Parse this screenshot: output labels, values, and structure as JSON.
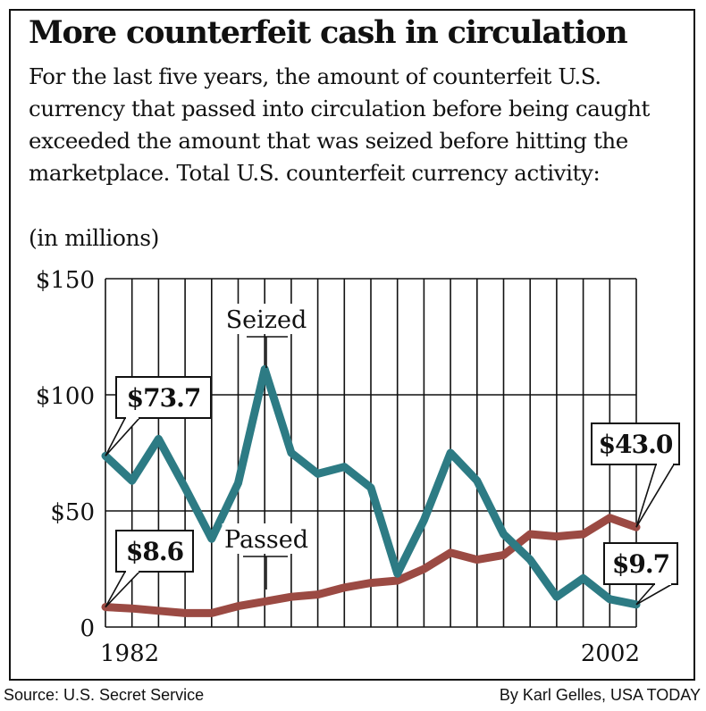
{
  "title": "More counterfeit cash in circulation",
  "subtitle": "For the last five years, the amount of counterfeit U.S. currency that passed into circulation before being caught exceeded the amount that was seized before hitting the marketplace. Total U.S. counterfeit currency activity:",
  "units_note": "(in millions)",
  "source": "Source: U.S. Secret Service",
  "credit": "By Karl Gelles, USA TODAY",
  "chart_data": {
    "type": "line",
    "x": [
      1982,
      1983,
      1984,
      1985,
      1986,
      1987,
      1988,
      1989,
      1990,
      1991,
      1992,
      1993,
      1994,
      1995,
      1996,
      1997,
      1998,
      1999,
      2000,
      2001,
      2002
    ],
    "x_tick_labels": [
      "1982",
      "2002"
    ],
    "y_tick_labels": [
      "$150",
      "$100",
      "$50",
      "0"
    ],
    "ylim": [
      0,
      150
    ],
    "grid": true,
    "series": [
      {
        "name": "Seized",
        "color": "#2d7b84",
        "values": [
          73.7,
          63,
          81,
          60,
          38,
          62,
          111,
          75,
          66,
          69,
          60,
          23,
          46,
          75,
          63,
          40,
          29,
          13,
          21,
          12,
          9.7
        ]
      },
      {
        "name": "Passed",
        "color": "#9b4a43",
        "values": [
          8.6,
          8,
          7,
          6,
          6,
          9,
          11,
          13,
          14,
          17,
          19,
          20,
          25,
          32,
          29,
          31,
          40,
          39,
          40,
          47,
          43.0
        ]
      }
    ],
    "callouts": [
      {
        "text": "$73.7",
        "series": "Seized",
        "index": 0
      },
      {
        "text": "$8.6",
        "series": "Passed",
        "index": 0
      },
      {
        "text": "$43.0",
        "series": "Passed",
        "index": 20
      },
      {
        "text": "$9.7",
        "series": "Seized",
        "index": 20
      }
    ]
  }
}
